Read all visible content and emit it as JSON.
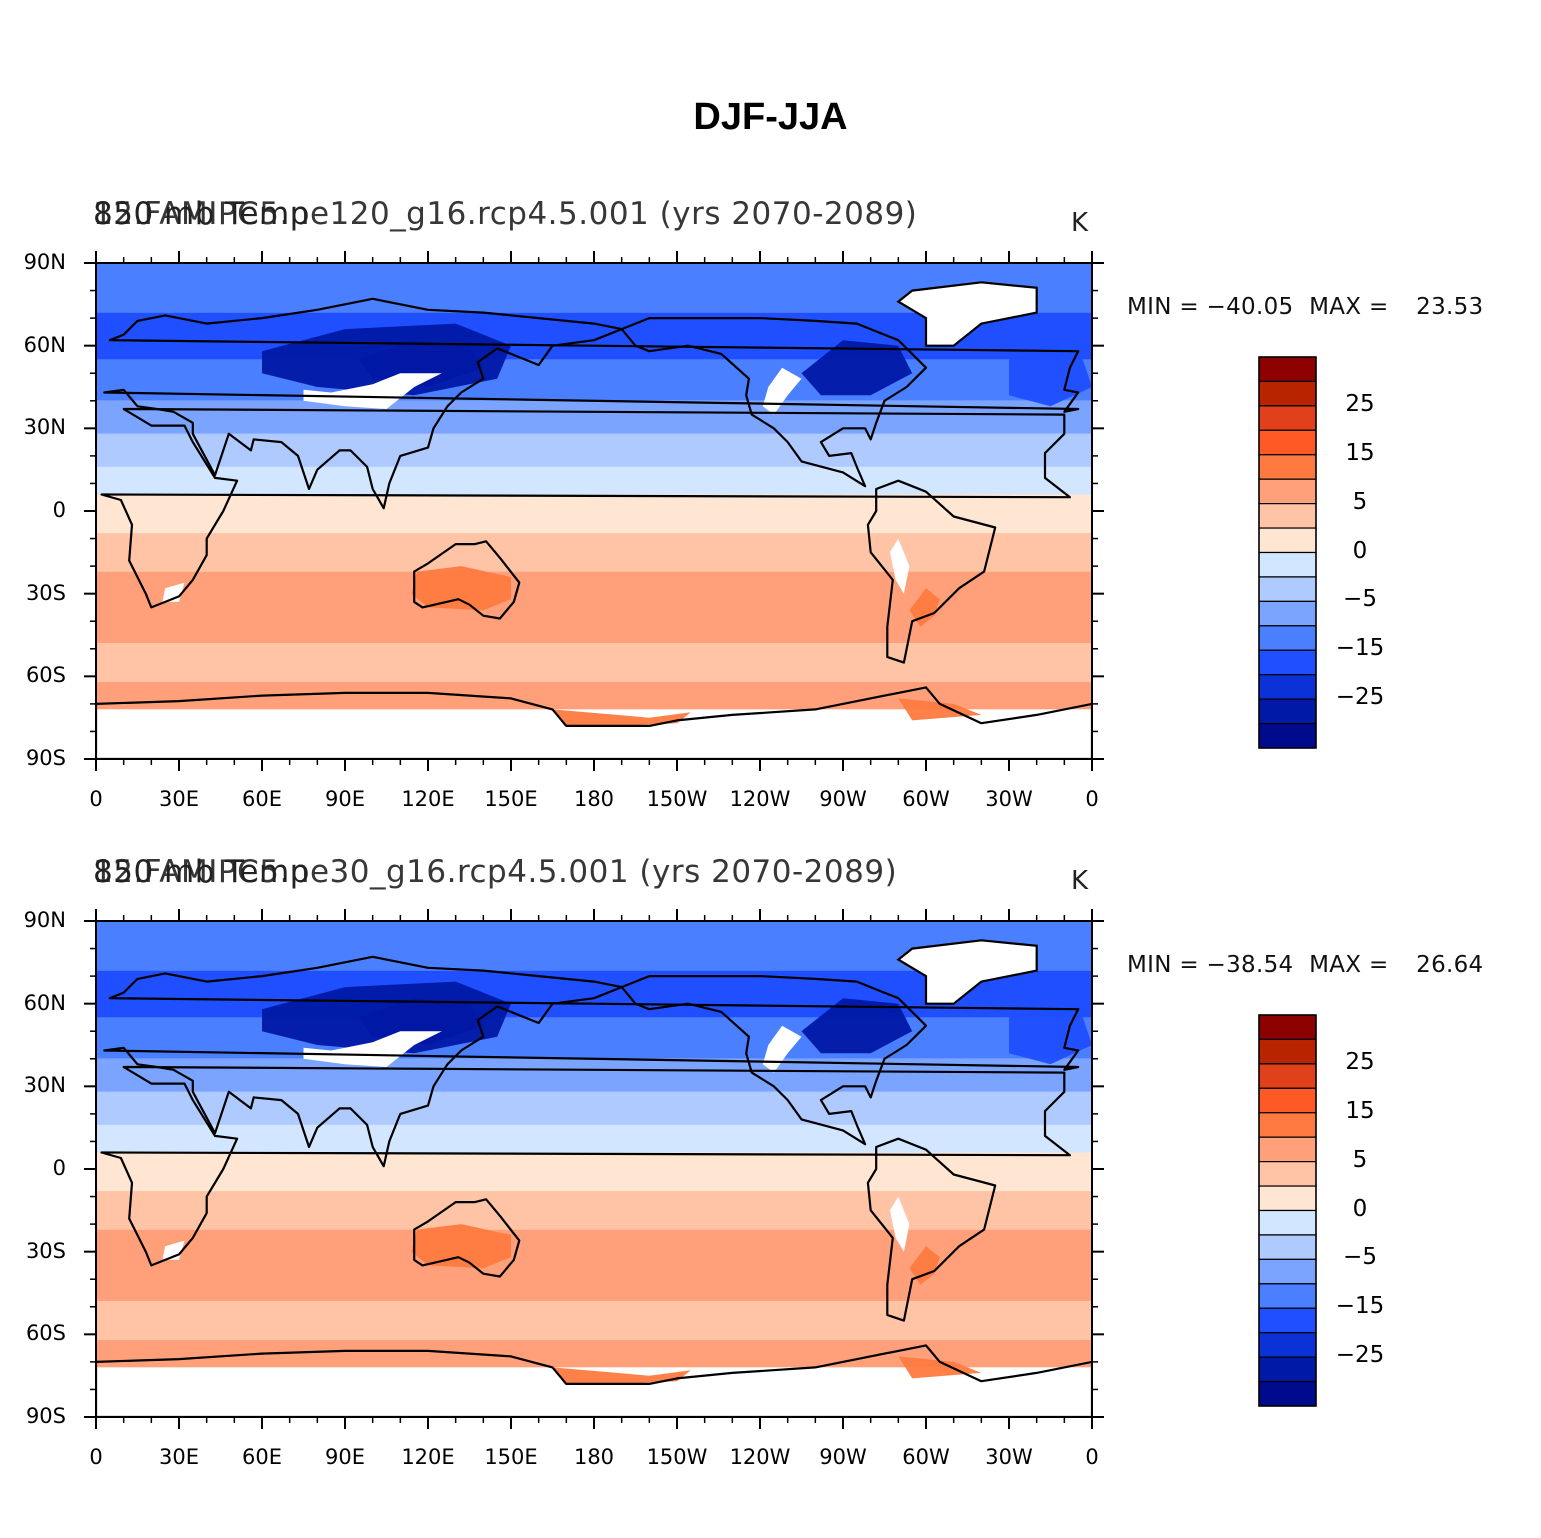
{
  "figure": {
    "title": "DJF-JJA"
  },
  "panels": [
    {
      "id": "top",
      "left_string": "850 mb Temp",
      "center_string": "12.FAMIPC5.ne120_g16.rcp4.5.001 (yrs 2070-2089)",
      "units": "K",
      "min_label": "MIN =",
      "min_value": "−40.05",
      "max_label": "MAX =",
      "max_value": "23.53"
    },
    {
      "id": "bottom",
      "left_string": "850 mb Temp",
      "center_string": "12.FAMIPC5.ne30_g16.rcp4.5.001 (yrs 2070-2089)",
      "units": "K",
      "min_label": "MIN =",
      "min_value": "−38.54",
      "max_label": "MAX =",
      "max_value": "26.64"
    }
  ],
  "axes": {
    "lat_ticks": [
      "90N",
      "60N",
      "30N",
      "0",
      "30S",
      "60S",
      "90S"
    ],
    "lon_ticks": [
      "0",
      "30E",
      "60E",
      "90E",
      "120E",
      "150E",
      "180",
      "150W",
      "120W",
      "90W",
      "60W",
      "30W",
      "0"
    ]
  },
  "colorbar": {
    "labels": [
      "25",
      "15",
      "5",
      "0",
      "−5",
      "−15",
      "−25"
    ],
    "colors": [
      "#8c0000",
      "#b82400",
      "#e0401a",
      "#ff5a26",
      "#ff7a40",
      "#ffa07a",
      "#ffc3a5",
      "#ffe6d2",
      "#d2e6ff",
      "#afcaff",
      "#7aa4ff",
      "#4a7fff",
      "#1f4fff",
      "#0a32d6",
      "#0019a6",
      "#000a8c"
    ]
  },
  "colors": {
    "ocean_pattern": "zonal-bands",
    "land": "#ffffff",
    "coast": "#000000"
  }
}
